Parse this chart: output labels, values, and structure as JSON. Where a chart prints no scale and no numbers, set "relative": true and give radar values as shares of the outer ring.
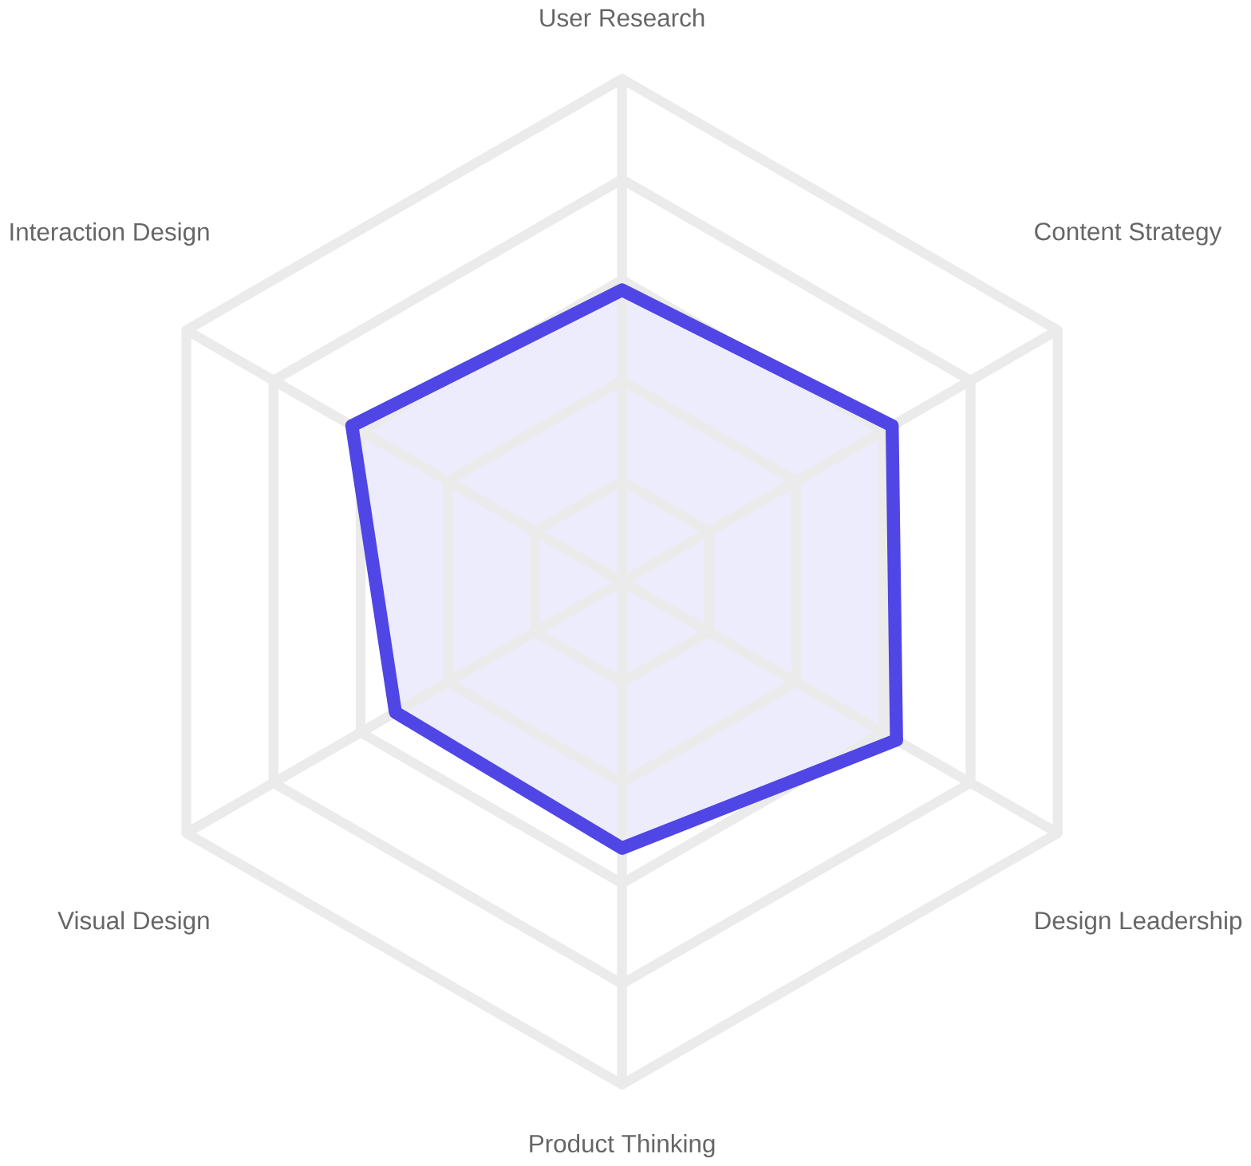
{
  "chart_data": {
    "type": "radar",
    "relative": true,
    "grid": true,
    "categories": [
      "User Research",
      "Content Strategy",
      "Design Leadership",
      "Product Thinking",
      "Visual Design",
      "Interaction Design"
    ],
    "series": [
      {
        "color": "#4f46e5",
        "values": [
          0.58,
          0.62,
          0.63,
          0.53,
          0.52,
          0.62
        ]
      }
    ]
  }
}
